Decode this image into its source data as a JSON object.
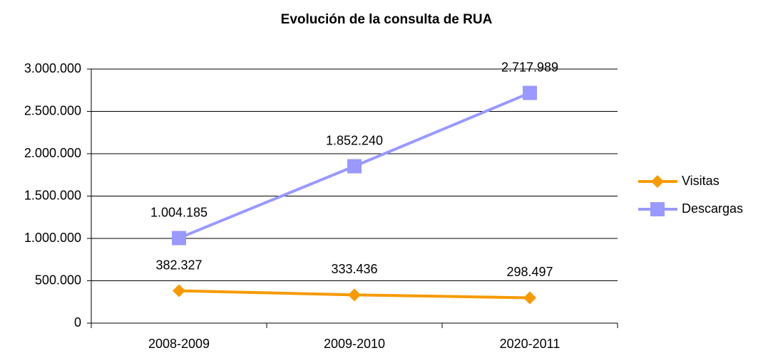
{
  "chart_data": {
    "type": "line",
    "title": "Evolución de la consulta de RUA",
    "categories": [
      "2008-2009",
      "2009-2010",
      "2020-2011"
    ],
    "series": [
      {
        "name": "Visitas",
        "color": "#f79a00",
        "marker": "diamond",
        "values": [
          382327,
          333436,
          298497
        ],
        "value_labels": [
          "382.327",
          "333.436",
          "298.497"
        ]
      },
      {
        "name": "Descargas",
        "color": "#9999ff",
        "marker": "square",
        "values": [
          1004185,
          1852240,
          2717989
        ],
        "value_labels": [
          "1.004.185",
          "1.852.240",
          "2.717.989"
        ]
      }
    ],
    "ylim": [
      0,
      3000000
    ],
    "yticks": [
      0,
      {
        "value": 500000,
        "label": "500.000"
      },
      {
        "value": 1000000,
        "label": "1.000.000"
      },
      {
        "value": 1500000,
        "label": "1.500.000"
      },
      {
        "value": 2000000,
        "label": "2.000.000"
      },
      {
        "value": 2500000,
        "label": "2.500.000"
      },
      {
        "value": 3000000,
        "label": "3.000.000"
      }
    ],
    "grid": true,
    "legend": "right"
  }
}
